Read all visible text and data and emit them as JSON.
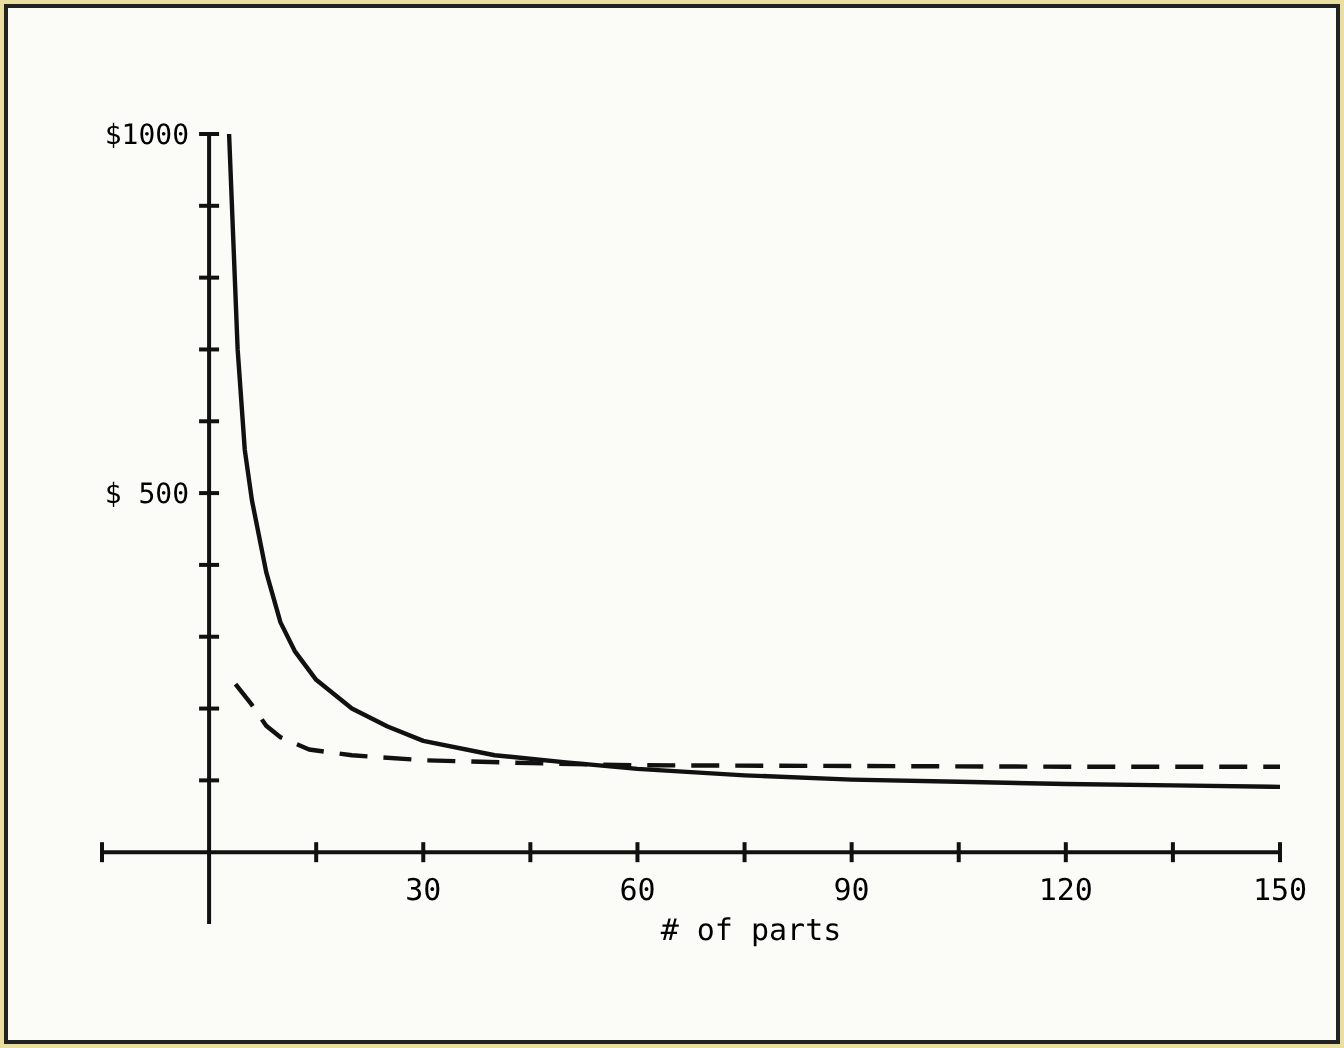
{
  "chart_data": {
    "type": "line",
    "xlabel": "# of parts",
    "xlim": [
      -15,
      150
    ],
    "ylim": [
      -100,
      1000
    ],
    "xticks": [
      {
        "value": -15,
        "label": null
      },
      {
        "value": 15,
        "label": null
      },
      30,
      {
        "value": 45,
        "label": null
      },
      60,
      {
        "value": 75,
        "label": null
      },
      90,
      {
        "value": 105,
        "label": null
      },
      120,
      {
        "value": 135,
        "label": null
      },
      150
    ],
    "yticks": [
      {
        "value": 100,
        "label": null
      },
      {
        "value": 200,
        "label": null
      },
      {
        "value": 300,
        "label": null
      },
      {
        "value": 400,
        "label": null
      },
      {
        "value": 500,
        "label": "$ 500"
      },
      {
        "value": 600,
        "label": null
      },
      {
        "value": 700,
        "label": null
      },
      {
        "value": 800,
        "label": null
      },
      {
        "value": 900,
        "label": null
      },
      {
        "value": 1000,
        "label": "$1000"
      }
    ],
    "grid": false,
    "marker": "none",
    "series": [
      {
        "color": "#111111",
        "line_style": "solid",
        "x": [
          2.8,
          4,
          5,
          6,
          8,
          10,
          12,
          15,
          20,
          25,
          30,
          40,
          50,
          60,
          75,
          90,
          105,
          120,
          135,
          150
        ],
        "values": [
          1000,
          700,
          560,
          490,
          390,
          320,
          280,
          240,
          200,
          175,
          155,
          135,
          125,
          116,
          107,
          101,
          98,
          95,
          93,
          91
        ]
      },
      {
        "color": "#111111",
        "line_style": "dashed",
        "x": [
          3.7,
          6,
          8,
          10,
          14,
          20,
          30,
          45,
          60,
          90,
          120,
          150
        ],
        "values": [
          234,
          205,
          176,
          160,
          143,
          135,
          128,
          124,
          121,
          120,
          119,
          119
        ]
      }
    ]
  }
}
